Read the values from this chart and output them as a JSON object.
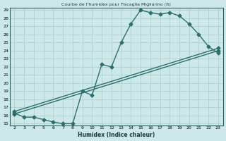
{
  "title": "Courbe de l'humidex pour Fiscaglia Migliarino (It)",
  "xlabel": "Humidex (Indice chaleur)",
  "bg_color": "#cce8e8",
  "grid_color": "#aacccc",
  "line_color": "#2e6e6e",
  "xmin": 2,
  "xmax": 23,
  "ymin": 15,
  "ymax": 29,
  "xticks": [
    2,
    3,
    4,
    5,
    6,
    7,
    8,
    9,
    10,
    11,
    12,
    13,
    14,
    15,
    16,
    17,
    18,
    19,
    20,
    21,
    22,
    23
  ],
  "yticks": [
    15,
    16,
    17,
    18,
    19,
    20,
    21,
    22,
    23,
    24,
    25,
    26,
    27,
    28,
    29
  ],
  "line1_x": [
    2,
    3,
    4,
    5,
    6,
    7,
    8,
    9,
    10,
    11,
    12,
    13,
    14,
    15,
    16,
    17,
    18,
    19,
    20,
    21,
    22,
    23
  ],
  "line1_y": [
    16.3,
    15.8,
    15.8,
    15.5,
    15.2,
    15.0,
    15.0,
    19.0,
    18.5,
    22.3,
    22.0,
    25.0,
    27.3,
    29.0,
    28.7,
    28.5,
    28.7,
    28.3,
    27.3,
    26.0,
    24.5,
    23.7
  ],
  "line2_x": [
    2,
    23
  ],
  "line2_y": [
    16.2,
    24.0
  ],
  "line3_x": [
    2,
    23
  ],
  "line3_y": [
    16.5,
    24.3
  ],
  "markersize": 2.5,
  "linewidth": 1.0
}
